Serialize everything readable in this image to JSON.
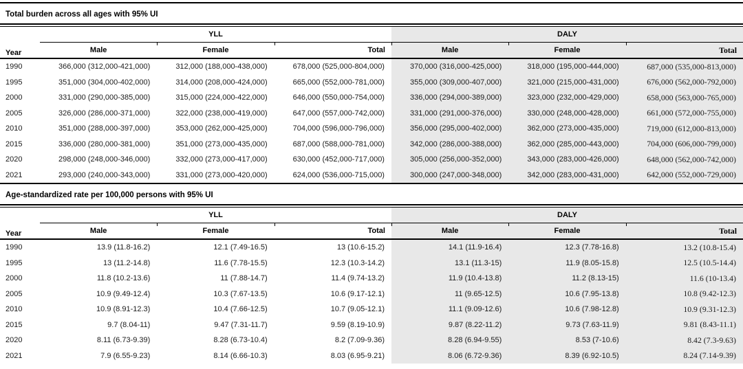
{
  "colors": {
    "shade": "#e8e8e8",
    "rule": "#000000",
    "text": "#1b1b1b"
  },
  "tables": [
    {
      "title": "Total burden across all ages with 95% UI",
      "year_header": "Year",
      "groups": [
        {
          "label": "YLL"
        },
        {
          "label": "DALY"
        }
      ],
      "columns": [
        "Male",
        "Female",
        "Total"
      ],
      "rows": [
        {
          "year": "1990",
          "yll": [
            "366,000 (312,000-421,000)",
            "312,000 (188,000-438,000)",
            "678,000 (525,000-804,000)"
          ],
          "daly": [
            "370,000 (316,000-425,000)",
            "318,000 (195,000-444,000)",
            "687,000 (535,000-813,000)"
          ]
        },
        {
          "year": "1995",
          "yll": [
            "351,000 (304,000-402,000)",
            "314,000 (208,000-424,000)",
            "665,000 (552,000-781,000)"
          ],
          "daly": [
            "355,000 (309,000-407,000)",
            "321,000 (215,000-431,000)",
            "676,000 (562,000-792,000)"
          ]
        },
        {
          "year": "2000",
          "yll": [
            "331,000 (290,000-385,000)",
            "315,000 (224,000-422,000)",
            "646,000 (550,000-754,000)"
          ],
          "daly": [
            "336,000 (294,000-389,000)",
            "323,000 (232,000-429,000)",
            "658,000 (563,000-765,000)"
          ]
        },
        {
          "year": "2005",
          "yll": [
            "326,000 (286,000-371,000)",
            "322,000 (238,000-419,000)",
            "647,000 (557,000-742,000)"
          ],
          "daly": [
            "331,000 (291,000-376,000)",
            "330,000 (248,000-428,000)",
            "661,000 (572,000-755,000)"
          ]
        },
        {
          "year": "2010",
          "yll": [
            "351,000 (288,000-397,000)",
            "353,000 (262,000-425,000)",
            "704,000 (596,000-796,000)"
          ],
          "daly": [
            "356,000 (295,000-402,000)",
            "362,000 (273,000-435,000)",
            "719,000 (612,000-813,000)"
          ]
        },
        {
          "year": "2015",
          "yll": [
            "336,000 (280,000-381,000)",
            "351,000 (273,000-435,000)",
            "687,000 (588,000-781,000)"
          ],
          "daly": [
            "342,000 (286,000-388,000)",
            "362,000 (285,000-443,000)",
            "704,000 (606,000-799,000)"
          ]
        },
        {
          "year": "2020",
          "yll": [
            "298,000 (248,000-346,000)",
            "332,000 (273,000-417,000)",
            "630,000 (452,000-717,000)"
          ],
          "daly": [
            "305,000 (256,000-352,000)",
            "343,000 (283,000-426,000)",
            "648,000 (562,000-742,000)"
          ]
        },
        {
          "year": "2021",
          "yll": [
            "293,000 (240,000-343,000)",
            "331,000 (273,000-420,000)",
            "624,000 (536,000-715,000)"
          ],
          "daly": [
            "300,000 (247,000-348,000)",
            "342,000 (283,000-431,000)",
            "642,000 (552,000-729,000)"
          ]
        }
      ]
    },
    {
      "title": "Age-standardized rate per 100,000 persons with 95% UI",
      "year_header": "Year",
      "groups": [
        {
          "label": "YLL"
        },
        {
          "label": "DALY"
        }
      ],
      "columns": [
        "Male",
        "Female",
        "Total"
      ],
      "rows": [
        {
          "year": "1990",
          "yll": [
            "13.9 (11.8-16.2)",
            "12.1 (7.49-16.5)",
            "13 (10.6-15.2)"
          ],
          "daly": [
            "14.1 (11.9-16.4)",
            "12.3 (7.78-16.8)",
            "13.2 (10.8-15.4)"
          ]
        },
        {
          "year": "1995",
          "yll": [
            "13 (11.2-14.8)",
            "11.6 (7.78-15.5)",
            "12.3 (10.3-14.2)"
          ],
          "daly": [
            "13.1 (11.3-15)",
            "11.9 (8.05-15.8)",
            "12.5 (10.5-14.4)"
          ]
        },
        {
          "year": "2000",
          "yll": [
            "11.8 (10.2-13.6)",
            "11 (7.88-14.7)",
            "11.4 (9.74-13.2)"
          ],
          "daly": [
            "11.9 (10.4-13.8)",
            "11.2 (8.13-15)",
            "11.6 (10-13.4)"
          ]
        },
        {
          "year": "2005",
          "yll": [
            "10.9 (9.49-12.4)",
            "10.3 (7.67-13.5)",
            "10.6 (9.17-12.1)"
          ],
          "daly": [
            "11 (9.65-12.5)",
            "10.6 (7.95-13.8)",
            "10.8 (9.42-12.3)"
          ]
        },
        {
          "year": "2010",
          "yll": [
            "10.9 (8.91-12.3)",
            "10.4 (7.66-12.5)",
            "10.7 (9.05-12.1)"
          ],
          "daly": [
            "11.1 (9.09-12.6)",
            "10.6 (7.98-12.8)",
            "10.9 (9.31-12.3)"
          ]
        },
        {
          "year": "2015",
          "yll": [
            "9.7 (8.04-11)",
            "9.47 (7.31-11.7)",
            "9.59 (8.19-10.9)"
          ],
          "daly": [
            "9.87 (8.22-11.2)",
            "9.73 (7.63-11.9)",
            "9.81 (8.43-11.1)"
          ]
        },
        {
          "year": "2020",
          "yll": [
            "8.11 (6.73-9.39)",
            "8.28 (6.73-10.4)",
            "8.2 (7.09-9.36)"
          ],
          "daly": [
            "8.28 (6.94-9.55)",
            "8.53 (7-10.6)",
            "8.42 (7.3-9.63)"
          ]
        },
        {
          "year": "2021",
          "yll": [
            "7.9 (6.55-9.23)",
            "8.14 (6.66-10.3)",
            "8.03 (6.95-9.21)"
          ],
          "daly": [
            "8.06 (6.72-9.36)",
            "8.39 (6.92-10.5)",
            "8.24 (7.14-9.39)"
          ]
        }
      ]
    }
  ]
}
